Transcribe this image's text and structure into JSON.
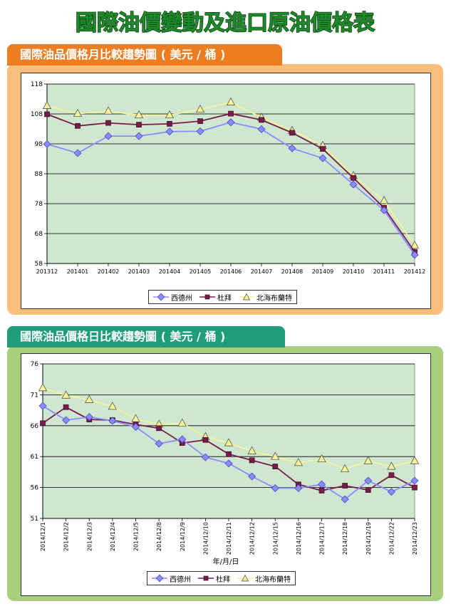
{
  "page_title": "國際油價變動及進口原油價格表",
  "sections": [
    {
      "heading": "國際油品價格月比較趨勢圖 ( 美元 / 桶 )"
    },
    {
      "heading": "國際油品價格日比較趨勢圖 ( 美元 / 桶 )"
    }
  ],
  "colors": {
    "wti": "#8c8cff",
    "dubai": "#7a1a4a",
    "brent": "#f4f49a",
    "plot_bg": "#cfe6d0"
  },
  "chart_data": [
    {
      "type": "line",
      "categories": [
        "201312",
        "201401",
        "201402",
        "201403",
        "201404",
        "201405",
        "201406",
        "201407",
        "201408",
        "201409",
        "201410",
        "201411",
        "201412"
      ],
      "ylim": [
        58,
        118
      ],
      "yticks": [
        58,
        68,
        78,
        88,
        98,
        108,
        118
      ],
      "xlabel": "",
      "ylabel": "",
      "grid": true,
      "legend": "bottom",
      "series": [
        {
          "name": "西德州",
          "values": [
            97.9,
            94.9,
            100.6,
            100.6,
            102.1,
            102.2,
            105.2,
            102.9,
            96.5,
            93.2,
            84.4,
            75.8,
            60.9
          ]
        },
        {
          "name": "杜拜",
          "values": [
            107.9,
            104.0,
            105.0,
            104.4,
            104.7,
            105.6,
            108.1,
            106.0,
            101.7,
            96.3,
            86.6,
            76.6,
            61.9
          ]
        },
        {
          "name": "北海布蘭特",
          "values": [
            110.7,
            108.1,
            108.9,
            107.6,
            107.6,
            109.5,
            111.9,
            106.8,
            102.4,
            97.4,
            87.3,
            79.0,
            64.0
          ]
        }
      ]
    },
    {
      "type": "line",
      "categories": [
        "2014/12/1",
        "2014/12/2",
        "2014/12/3",
        "2014/12/4",
        "2014/12/5",
        "2014/12/8",
        "2014/12/9",
        "2014/12/10",
        "2014/12/11",
        "2014/12/12",
        "2014/12/15",
        "2014/12/16",
        "2014/12/17",
        "2014/12/18",
        "2014/12/19",
        "2014/12/22",
        "2014/12/23"
      ],
      "ylim": [
        51,
        76
      ],
      "yticks": [
        51,
        56,
        61,
        66,
        71,
        76
      ],
      "xlabel": "年/月/日",
      "ylabel": "",
      "grid": true,
      "legend": "bottom",
      "series": [
        {
          "name": "西德州",
          "values": [
            69.2,
            66.9,
            67.4,
            66.8,
            65.8,
            63.1,
            63.8,
            60.9,
            59.9,
            57.8,
            55.9,
            55.9,
            56.5,
            54.1,
            57.1,
            55.3,
            57.1
          ]
        },
        {
          "name": "杜拜",
          "values": [
            66.4,
            69.0,
            67.0,
            66.9,
            66.2,
            65.6,
            63.2,
            63.7,
            61.4,
            60.4,
            59.4,
            56.5,
            55.5,
            56.3,
            55.6,
            58.0,
            56.0
          ]
        },
        {
          "name": "北海布蘭特",
          "values": [
            72.1,
            70.9,
            70.2,
            69.1,
            67.1,
            66.2,
            66.4,
            64.2,
            63.2,
            61.9,
            61.0,
            60.0,
            60.6,
            59.0,
            60.3,
            59.4,
            60.3
          ]
        }
      ]
    }
  ]
}
